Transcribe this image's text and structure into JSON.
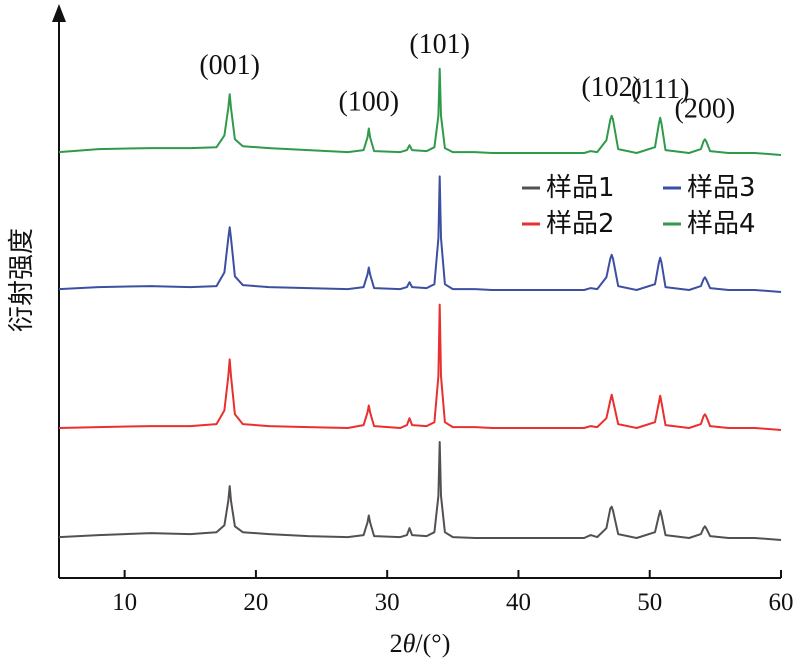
{
  "chart_data": {
    "type": "line",
    "xlabel": "2θ/(°)",
    "ylabel": "衍射强度",
    "xlim": [
      5,
      60
    ],
    "xticks": [
      10,
      20,
      30,
      40,
      50,
      60
    ],
    "peaks": [
      {
        "label": "(001)",
        "x": 18.0
      },
      {
        "label": "(100)",
        "x": 28.6
      },
      {
        "label": "(101)",
        "x": 34.0
      },
      {
        "label": "(102)",
        "x": 47.1
      },
      {
        "label": "(111)",
        "x": 50.8
      },
      {
        "label": "(200)",
        "x": 54.2
      }
    ],
    "legend": {
      "placement": "right",
      "entries": [
        "样品1",
        "样品3",
        "样品2",
        "样品4"
      ]
    },
    "series": [
      {
        "name": "样品1",
        "color": "#555050",
        "x": [
          5,
          8,
          12,
          15,
          17,
          17.6,
          17.9,
          18.0,
          18.1,
          18.4,
          19,
          21,
          24,
          27,
          28.2,
          28.5,
          28.6,
          28.7,
          29,
          31,
          31.5,
          31.7,
          31.9,
          33,
          33.6,
          33.9,
          34.0,
          34.1,
          34.4,
          35,
          36.7,
          38,
          42,
          45,
          45.5,
          46,
          46.7,
          47.0,
          47.1,
          47.2,
          47.6,
          49,
          50.4,
          50.7,
          50.8,
          50.9,
          51.2,
          53,
          53.9,
          54.1,
          54.2,
          54.3,
          54.6,
          56,
          58,
          60
        ],
        "values": [
          3,
          5,
          7,
          6,
          8,
          15,
          40,
          55,
          40,
          14,
          8,
          6,
          4,
          3,
          5,
          18,
          25,
          18,
          4,
          3,
          5,
          12,
          5,
          4,
          8,
          45,
          100,
          45,
          8,
          3,
          2,
          2,
          2,
          2,
          5,
          3,
          12,
          32,
          34,
          30,
          6,
          2,
          8,
          25,
          30,
          25,
          5,
          2,
          6,
          12,
          14,
          12,
          4,
          2,
          2,
          0
        ]
      },
      {
        "name": "样品2",
        "color": "#e8302e",
        "x": [
          5,
          8,
          12,
          15,
          17,
          17.6,
          17.9,
          18.0,
          18.1,
          18.4,
          19,
          21,
          24,
          27,
          28.2,
          28.5,
          28.6,
          28.7,
          29,
          31,
          31.5,
          31.7,
          31.9,
          33,
          33.6,
          33.9,
          34.0,
          34.1,
          34.4,
          35,
          36.7,
          38,
          42,
          45,
          45.5,
          46,
          46.7,
          47.0,
          47.1,
          47.2,
          47.6,
          49,
          50.4,
          50.7,
          50.8,
          50.9,
          51.2,
          53,
          53.9,
          54.1,
          54.2,
          54.3,
          54.6,
          56,
          58,
          60
        ],
        "values": [
          2,
          3,
          4,
          4,
          6,
          20,
          55,
          72,
          55,
          16,
          6,
          4,
          3,
          2,
          5,
          18,
          25,
          18,
          4,
          2,
          5,
          12,
          5,
          4,
          8,
          55,
          128,
          55,
          8,
          3,
          3,
          2,
          2,
          2,
          4,
          3,
          12,
          30,
          36,
          30,
          6,
          2,
          8,
          28,
          35,
          28,
          5,
          2,
          6,
          14,
          16,
          14,
          4,
          2,
          2,
          0
        ]
      },
      {
        "name": "样品3",
        "color": "#3d4fa0",
        "x": [
          5,
          8,
          12,
          15,
          17,
          17.6,
          17.9,
          18.0,
          18.1,
          18.4,
          19,
          21,
          24,
          27,
          28.2,
          28.5,
          28.6,
          28.7,
          29,
          31,
          31.5,
          31.7,
          31.9,
          33,
          33.6,
          33.9,
          34.0,
          34.1,
          34.4,
          35,
          36.7,
          38,
          42,
          45,
          45.5,
          46,
          46.7,
          47.0,
          47.1,
          47.2,
          47.6,
          49,
          50.4,
          50.7,
          50.8,
          50.9,
          51.2,
          53,
          53.9,
          54.1,
          54.2,
          54.3,
          54.6,
          56,
          58,
          60
        ],
        "values": [
          3,
          5,
          6,
          5,
          6,
          20,
          55,
          66,
          55,
          16,
          7,
          5,
          4,
          3,
          5,
          18,
          25,
          18,
          4,
          3,
          5,
          10,
          5,
          4,
          8,
          55,
          118,
          55,
          8,
          3,
          3,
          2,
          2,
          2,
          4,
          3,
          15,
          34,
          38,
          34,
          6,
          2,
          8,
          30,
          35,
          30,
          5,
          2,
          6,
          13,
          15,
          13,
          4,
          2,
          2,
          0
        ]
      },
      {
        "name": "样品4",
        "color": "#2f9a4a",
        "x": [
          5,
          8,
          12,
          15,
          17,
          17.6,
          17.9,
          18.0,
          18.1,
          18.4,
          19,
          21,
          24,
          27,
          28.2,
          28.5,
          28.6,
          28.7,
          29,
          31,
          31.5,
          31.7,
          31.9,
          33,
          33.6,
          33.9,
          34.0,
          34.1,
          34.4,
          35,
          36.7,
          38,
          42,
          45,
          45.5,
          46,
          46.7,
          47.0,
          47.1,
          47.2,
          47.6,
          49,
          50.4,
          50.7,
          50.8,
          50.9,
          51.2,
          53,
          53.9,
          54.1,
          54.2,
          54.3,
          54.6,
          56,
          58,
          60
        ],
        "values": [
          3,
          6,
          7,
          7,
          8,
          20,
          48,
          62,
          48,
          16,
          9,
          7,
          5,
          3,
          5,
          18,
          27,
          18,
          4,
          3,
          5,
          10,
          5,
          4,
          8,
          40,
          88,
          40,
          7,
          3,
          3,
          2,
          2,
          2,
          4,
          3,
          15,
          36,
          40,
          36,
          6,
          2,
          8,
          32,
          38,
          32,
          5,
          2,
          6,
          14,
          16,
          14,
          4,
          2,
          2,
          0
        ]
      }
    ]
  }
}
